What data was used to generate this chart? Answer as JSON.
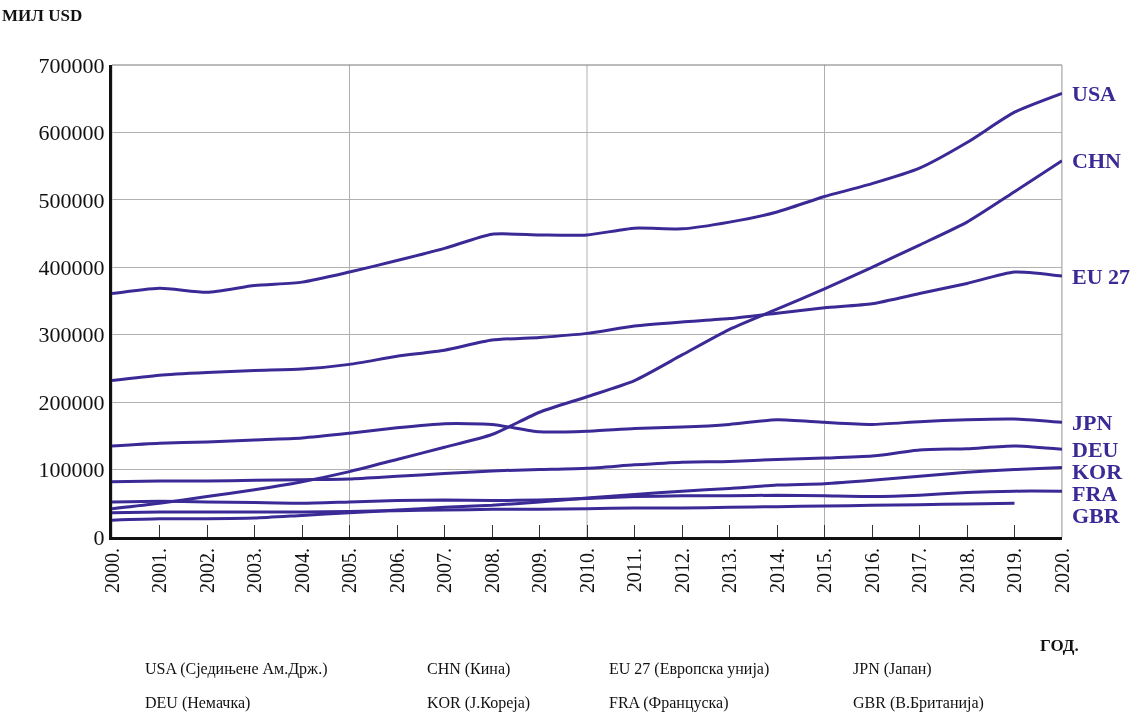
{
  "chart_data": {
    "type": "line",
    "xlabel": "ГОД.",
    "ylabel": "МИЛ USD",
    "x": [
      2000,
      2001,
      2002,
      2003,
      2004,
      2005,
      2006,
      2007,
      2008,
      2009,
      2010,
      2011,
      2012,
      2013,
      2014,
      2015,
      2016,
      2017,
      2018,
      2019,
      2020
    ],
    "xlim": [
      2000,
      2020
    ],
    "xticks": [
      {
        "value": 2000,
        "label": "2000."
      },
      {
        "value": 2001,
        "label": "2001."
      },
      {
        "value": 2002,
        "label": "2002."
      },
      {
        "value": 2003,
        "label": "2003."
      },
      {
        "value": 2004,
        "label": "2004."
      },
      {
        "value": 2005,
        "label": "2005."
      },
      {
        "value": 2006,
        "label": "2006."
      },
      {
        "value": 2007,
        "label": "2007."
      },
      {
        "value": 2008,
        "label": "2008."
      },
      {
        "value": 2009,
        "label": "2009."
      },
      {
        "value": 2010,
        "label": "2010."
      },
      {
        "value": 2011,
        "label": "2011."
      },
      {
        "value": 2012,
        "label": "2012."
      },
      {
        "value": 2013,
        "label": "2013."
      },
      {
        "value": 2014,
        "label": "2014."
      },
      {
        "value": 2015,
        "label": "2015."
      },
      {
        "value": 2016,
        "label": "2016."
      },
      {
        "value": 2017,
        "label": "2017."
      },
      {
        "value": 2018,
        "label": "2018."
      },
      {
        "value": 2019,
        "label": "2019."
      },
      {
        "value": 2020,
        "label": "2020."
      }
    ],
    "ylim": [
      0,
      700000
    ],
    "yticks": [
      0,
      100000,
      200000,
      300000,
      400000,
      500000,
      600000,
      700000
    ],
    "grid": true,
    "legend": false,
    "marker": "none",
    "line_style": "solid",
    "series": [
      {
        "name": "USA",
        "color": "#3a2a96",
        "values": [
          361000,
          369000,
          363000,
          373000,
          378000,
          393000,
          410000,
          428000,
          449000,
          448000,
          448000,
          458000,
          457000,
          467000,
          482000,
          505000,
          524000,
          547000,
          585000,
          630000,
          658000
        ]
      },
      {
        "name": "CHN",
        "color": "#3a2a96",
        "values": [
          42000,
          50000,
          60000,
          70000,
          82000,
          97000,
          115000,
          133000,
          152000,
          185000,
          208000,
          232000,
          270000,
          308000,
          338000,
          368000,
          400000,
          433000,
          467000,
          512000,
          558000
        ]
      },
      {
        "name": "EU 27",
        "color": "#3a2a96",
        "values": [
          232000,
          240000,
          244000,
          247000,
          249000,
          256000,
          268000,
          277000,
          292000,
          296000,
          302000,
          313000,
          319000,
          324000,
          332000,
          340000,
          346000,
          361000,
          376000,
          393000,
          387000
        ]
      },
      {
        "name": "JPN",
        "color": "#3a2a96",
        "values": [
          135000,
          139000,
          141000,
          144000,
          147000,
          154000,
          162000,
          168000,
          167000,
          156000,
          157000,
          161000,
          163000,
          167000,
          174000,
          170000,
          167000,
          171000,
          174000,
          175000,
          170000
        ]
      },
      {
        "name": "DEU",
        "color": "#3a2a96",
        "values": [
          82000,
          83000,
          83000,
          84000,
          85000,
          86000,
          90000,
          94000,
          98000,
          100000,
          102000,
          107000,
          111000,
          112000,
          115000,
          117000,
          120000,
          129000,
          131000,
          135000,
          130000
        ]
      },
      {
        "name": "KOR",
        "color": "#3a2a96",
        "values": [
          25000,
          27000,
          27000,
          28000,
          32000,
          36000,
          40000,
          44000,
          47000,
          52000,
          58000,
          63000,
          68000,
          72000,
          77000,
          79000,
          84000,
          90000,
          96000,
          100000,
          103000
        ]
      },
      {
        "name": "FRA",
        "color": "#3a2a96",
        "values": [
          52000,
          53000,
          52000,
          51000,
          50000,
          52000,
          54000,
          55000,
          54000,
          55000,
          57000,
          60000,
          61000,
          61000,
          62000,
          61000,
          60000,
          62000,
          66000,
          68000,
          68000
        ]
      },
      {
        "name": "GBR",
        "color": "#3a2a96",
        "values": [
          36000,
          37000,
          37000,
          37000,
          37000,
          38000,
          39000,
          40000,
          41000,
          41000,
          42000,
          43000,
          43000,
          44000,
          45000,
          46000,
          47000,
          48000,
          49000,
          50000,
          null
        ]
      }
    ],
    "annotations": [
      "USA (Сједињене Ам.Држ.)",
      "CHN (Кина)",
      "EU 27 (Европска унија)",
      "JPN (Јапан)",
      "DEU (Немачка)",
      "KOR (Ј.Кореја)",
      "FRA (Француска)",
      "GBR (В.Британија)"
    ]
  }
}
